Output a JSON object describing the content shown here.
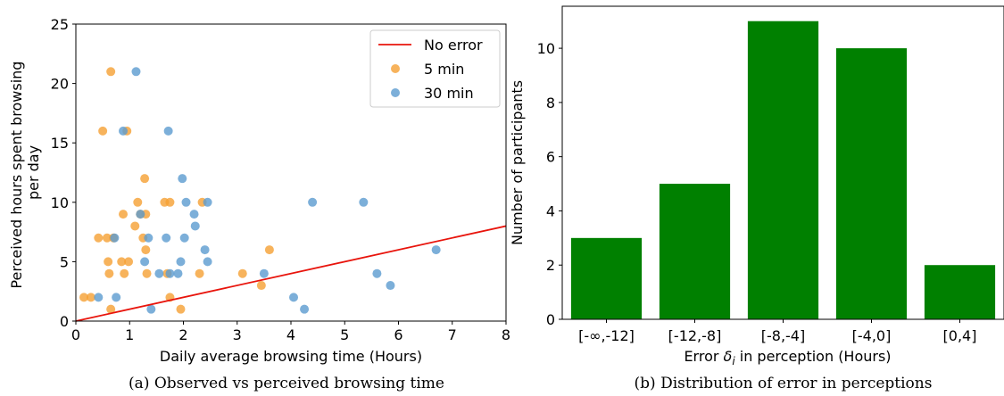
{
  "chart_data": [
    {
      "type": "scatter",
      "caption": "(a) Observed vs perceived browsing time",
      "xlabel": "Daily average browsing time (Hours)",
      "ylabel_lines": [
        "Perceived hours spent browsing",
        "per day"
      ],
      "xlim": [
        0,
        8
      ],
      "ylim": [
        0,
        25
      ],
      "xticks": [
        0,
        1,
        2,
        3,
        4,
        5,
        6,
        7,
        8
      ],
      "yticks": [
        0,
        5,
        10,
        15,
        20,
        25
      ],
      "legend_position": "top-right",
      "reference_line": {
        "name": "No error",
        "color": "#e8140c",
        "slope": 1
      },
      "series": [
        {
          "name": "5 min",
          "color": "#f5a033",
          "points": [
            [
              0.15,
              2
            ],
            [
              0.28,
              2
            ],
            [
              0.42,
              7
            ],
            [
              0.5,
              16
            ],
            [
              0.58,
              7
            ],
            [
              0.6,
              5
            ],
            [
              0.62,
              4
            ],
            [
              0.65,
              21
            ],
            [
              0.65,
              1
            ],
            [
              0.7,
              7
            ],
            [
              0.85,
              5
            ],
            [
              0.88,
              9
            ],
            [
              0.9,
              4
            ],
            [
              0.95,
              16
            ],
            [
              0.98,
              5
            ],
            [
              1.1,
              8
            ],
            [
              1.15,
              10
            ],
            [
              1.2,
              9
            ],
            [
              1.25,
              7
            ],
            [
              1.28,
              12
            ],
            [
              1.3,
              9
            ],
            [
              1.3,
              6
            ],
            [
              1.32,
              4
            ],
            [
              1.65,
              10
            ],
            [
              1.7,
              4
            ],
            [
              1.75,
              10
            ],
            [
              1.75,
              2
            ],
            [
              1.95,
              1
            ],
            [
              2.3,
              4
            ],
            [
              2.35,
              10
            ],
            [
              3.1,
              4
            ],
            [
              3.45,
              3
            ],
            [
              3.6,
              6
            ]
          ]
        },
        {
          "name": "30 min",
          "color": "#5b9bcf",
          "points": [
            [
              0.42,
              2
            ],
            [
              0.72,
              7
            ],
            [
              0.75,
              2
            ],
            [
              0.88,
              16
            ],
            [
              1.12,
              21
            ],
            [
              1.2,
              9
            ],
            [
              1.28,
              5
            ],
            [
              1.35,
              7
            ],
            [
              1.4,
              1
            ],
            [
              1.55,
              4
            ],
            [
              1.68,
              7
            ],
            [
              1.72,
              16
            ],
            [
              1.75,
              4
            ],
            [
              1.9,
              4
            ],
            [
              1.95,
              5
            ],
            [
              1.98,
              12
            ],
            [
              2.02,
              7
            ],
            [
              2.05,
              10
            ],
            [
              2.2,
              9
            ],
            [
              2.22,
              8
            ],
            [
              2.4,
              6
            ],
            [
              2.45,
              5
            ],
            [
              2.45,
              10
            ],
            [
              3.5,
              4
            ],
            [
              4.05,
              2
            ],
            [
              4.25,
              1
            ],
            [
              4.4,
              10
            ],
            [
              5.35,
              10
            ],
            [
              5.6,
              4
            ],
            [
              5.85,
              3
            ],
            [
              6.7,
              6
            ]
          ]
        }
      ]
    },
    {
      "type": "bar",
      "caption": "(b) Distribution of error in perceptions",
      "xlabel_main": "Error ",
      "xlabel_var": "δ",
      "xlabel_sub": "i",
      "xlabel_rest": " in perception (Hours)",
      "ylabel": "Number of participants",
      "ylim": [
        0,
        11.55
      ],
      "yticks": [
        0,
        2,
        4,
        6,
        8,
        10
      ],
      "bar_color": "#008000",
      "categories": [
        "[-∞,-12]",
        "[-12,-8]",
        "[-8,-4]",
        "[-4,0]",
        "[0,4]"
      ],
      "values": [
        3,
        5,
        11,
        10,
        2
      ]
    }
  ]
}
